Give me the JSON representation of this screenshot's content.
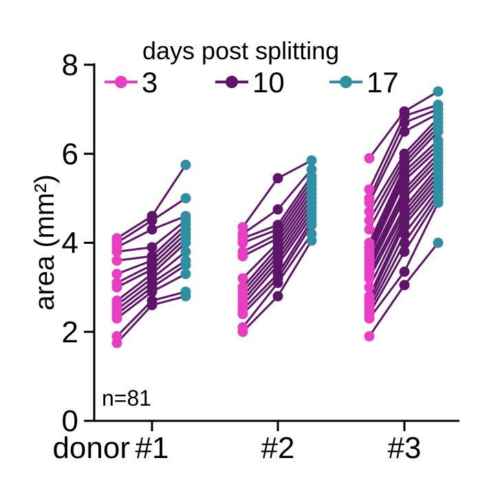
{
  "chart_data": {
    "type": "scatter",
    "ylabel": "area (mm²)",
    "ylim": [
      0,
      8
    ],
    "yticks": [
      "0",
      "2",
      "4",
      "6",
      "8"
    ],
    "groups": [
      {
        "label": "donor #1",
        "tick": "#1",
        "prefix": "donor"
      },
      {
        "label": "#2",
        "tick": "#2",
        "prefix": ""
      },
      {
        "label": "#3",
        "tick": "#3",
        "prefix": ""
      }
    ],
    "legend": {
      "title": "days post splitting",
      "placement": "top",
      "items": [
        {
          "label": "3",
          "color": "#e83ec4"
        },
        {
          "label": "10",
          "color": "#5e1468"
        },
        {
          "label": "17",
          "color": "#2f8fa3"
        }
      ]
    },
    "line_color": "#5e1468",
    "annotation": "n=81",
    "series": [
      {
        "name": "3",
        "color": "#e83ec4",
        "values": [
          [
            1.75,
            1.9,
            2.3,
            2.4,
            2.5,
            2.6,
            2.7,
            3.0,
            3.1,
            3.3,
            3.6,
            3.8,
            3.9,
            4.0,
            4.1
          ],
          [
            2.0,
            2.1,
            2.4,
            2.5,
            2.6,
            2.7,
            2.8,
            2.9,
            3.0,
            3.2,
            3.7,
            3.8,
            4.0,
            4.1,
            4.2,
            4.35
          ],
          [
            1.9,
            2.3,
            2.4,
            2.5,
            2.6,
            2.7,
            2.8,
            3.0,
            3.2,
            3.3,
            3.4,
            3.5,
            3.6,
            3.7,
            3.8,
            3.9,
            4.0,
            4.3,
            4.5,
            4.7,
            4.9,
            5.0,
            5.2,
            5.9
          ]
        ]
      },
      {
        "name": "10",
        "color": "#5e1468",
        "values": [
          [
            2.6,
            2.7,
            2.9,
            3.0,
            3.1,
            3.2,
            3.3,
            3.4,
            3.5,
            3.6,
            3.7,
            3.9,
            4.3,
            4.5,
            4.6
          ],
          [
            2.8,
            3.1,
            3.2,
            3.3,
            3.5,
            3.6,
            3.7,
            3.8,
            3.9,
            4.0,
            4.1,
            4.2,
            4.3,
            4.4,
            4.75,
            5.45
          ],
          [
            3.05,
            3.35,
            3.8,
            4.0,
            4.2,
            4.4,
            4.5,
            4.6,
            4.7,
            4.8,
            5.0,
            5.1,
            5.2,
            5.4,
            5.5,
            5.6,
            5.7,
            5.8,
            5.9,
            6.0,
            6.5,
            6.7,
            6.85,
            6.95
          ]
        ]
      },
      {
        "name": "17",
        "color": "#2f8fa3",
        "values": [
          [
            2.8,
            2.9,
            3.3,
            3.5,
            3.6,
            3.8,
            4.0,
            4.1,
            4.2,
            4.3,
            4.4,
            4.5,
            4.6,
            5.0,
            5.75
          ],
          [
            4.05,
            4.2,
            4.4,
            4.5,
            4.6,
            4.7,
            4.8,
            4.9,
            5.0,
            5.1,
            5.2,
            5.3,
            5.4,
            5.5,
            5.65,
            5.85
          ],
          [
            4.0,
            4.9,
            5.0,
            5.1,
            5.2,
            5.3,
            5.4,
            5.5,
            5.6,
            5.7,
            5.8,
            5.9,
            6.0,
            6.1,
            6.2,
            6.3,
            6.5,
            6.6,
            6.7,
            6.8,
            6.9,
            7.0,
            7.1,
            7.4
          ]
        ]
      }
    ]
  }
}
